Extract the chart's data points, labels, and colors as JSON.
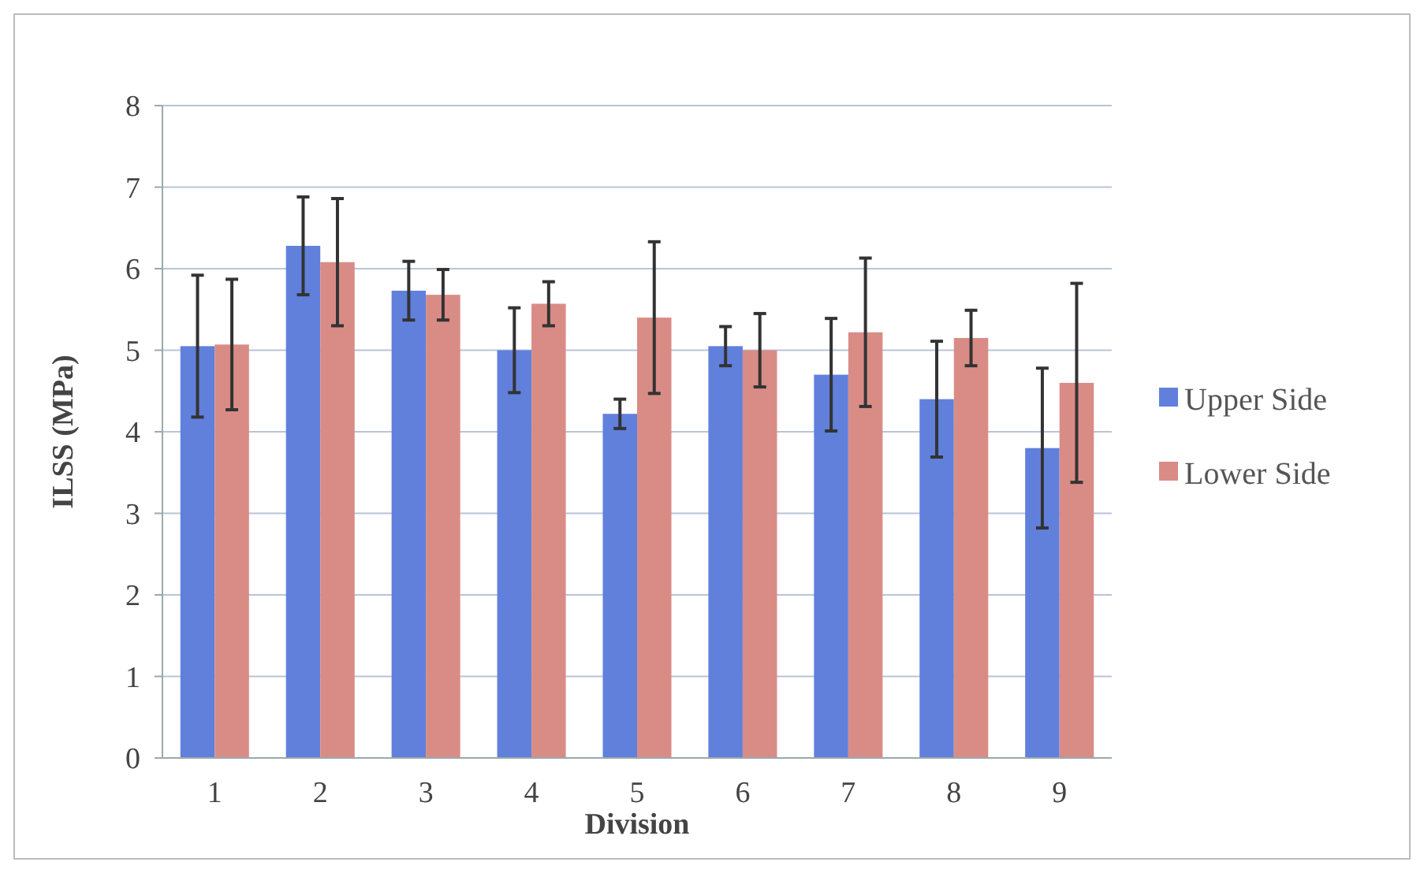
{
  "chart_data": {
    "type": "bar",
    "xlabel": "Division",
    "ylabel": "ILSS (MPa)",
    "categories": [
      "1",
      "2",
      "3",
      "4",
      "5",
      "6",
      "7",
      "8",
      "9"
    ],
    "series": [
      {
        "name": "Upper Side",
        "color": "#6080dc",
        "values": [
          5.05,
          6.28,
          5.73,
          5.0,
          4.22,
          5.05,
          4.7,
          4.4,
          3.8
        ],
        "errors": [
          0.87,
          0.6,
          0.36,
          0.52,
          0.18,
          0.24,
          0.69,
          0.71,
          0.98
        ]
      },
      {
        "name": "Lower Side",
        "color": "#d98c86",
        "values": [
          5.07,
          6.08,
          5.68,
          5.57,
          5.4,
          5.0,
          5.22,
          5.15,
          4.6
        ],
        "errors": [
          0.8,
          0.78,
          0.31,
          0.27,
          0.93,
          0.45,
          0.91,
          0.34,
          1.22
        ]
      }
    ],
    "ylim": [
      0,
      8
    ],
    "yticks": [
      0,
      1,
      2,
      3,
      4,
      5,
      6,
      7,
      8
    ],
    "grid": "y",
    "legend": "right"
  }
}
